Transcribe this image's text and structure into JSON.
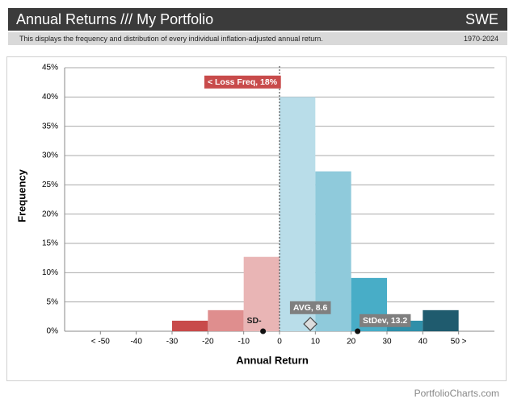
{
  "header": {
    "title": "Annual Returns /// My Portfolio",
    "ticker": "SWE",
    "subtitle": "This displays the frequency and distribution of every individual inflation-adjusted annual return.",
    "period": "1970-2024"
  },
  "footer": "PortfolioCharts.com",
  "chart_data": {
    "type": "histogram",
    "x_label": "Annual Return",
    "y_label": "Frequency",
    "bins": [
      -30,
      -20,
      -10,
      0,
      10,
      20,
      30,
      40,
      50
    ],
    "values": [
      1.8,
      3.6,
      12.7,
      40.0,
      27.3,
      9.1,
      1.8,
      3.6
    ],
    "colors": [
      "#c84b4b",
      "#df8e8e",
      "#e9b5b5",
      "#b9dde9",
      "#8fcadb",
      "#48adc7",
      "#2f8fa9",
      "#1f5b6e"
    ],
    "xlim": [
      -60,
      60
    ],
    "xticks": [
      {
        "value": -50,
        "label": "< -50"
      },
      -40,
      -30,
      -20,
      -10,
      0,
      10,
      20,
      30,
      40,
      {
        "value": 50,
        "label": "50 >"
      }
    ],
    "ylim": [
      0,
      45
    ],
    "yticks": [
      {
        "value": 0,
        "label": "0%"
      },
      {
        "value": 5,
        "label": "5%"
      },
      {
        "value": 10,
        "label": "10%"
      },
      {
        "value": 15,
        "label": "15%"
      },
      {
        "value": 20,
        "label": "20%"
      },
      {
        "value": 25,
        "label": "25%"
      },
      {
        "value": 30,
        "label": "30%"
      },
      {
        "value": 35,
        "label": "35%"
      },
      {
        "value": 40,
        "label": "40%"
      },
      {
        "value": 45,
        "label": "45%"
      }
    ],
    "grid": true,
    "mean": 8.6,
    "stdev": 13.2,
    "annotations": {
      "loss": "< Loss Freq, 18%",
      "avg": "AVG, 8.6",
      "sd_plus": "StDev, 13.2",
      "sd_minus": "SD-"
    }
  }
}
